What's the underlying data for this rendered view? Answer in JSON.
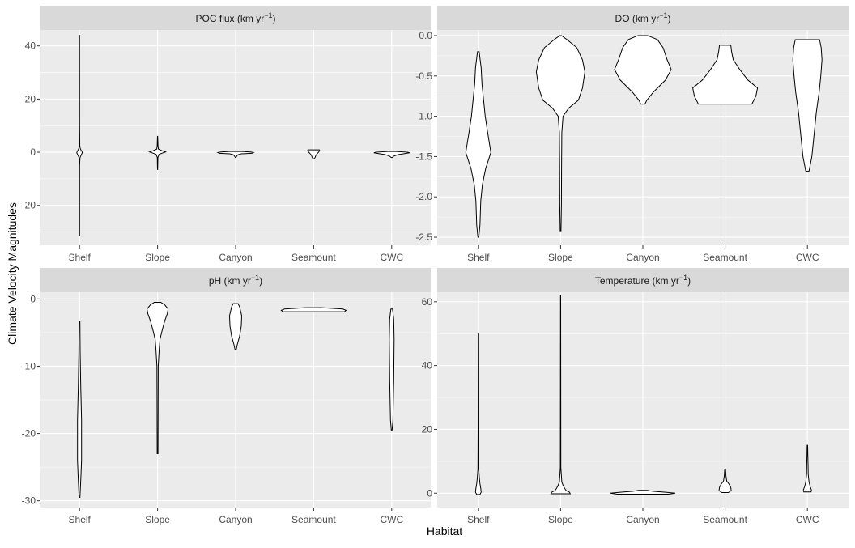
{
  "axes": {
    "xlabel": "Habitat",
    "ylabel": "Climate Velocity Magnitudes"
  },
  "chart_data": [
    {
      "type": "violin",
      "title": "POC flux (km yr",
      "title_sup": "−1",
      "title_suffix": ")",
      "categories": [
        "Shelf",
        "Slope",
        "Canyon",
        "Seamount",
        "CWC"
      ],
      "ylim": [
        -35,
        46
      ],
      "yticks": [
        -20,
        0,
        20,
        40
      ],
      "ytick_labels": [
        "-20",
        "0",
        "20",
        "40"
      ],
      "series": [
        {
          "category": "Shelf",
          "profile": [
            [
              -31.5,
              0.1
            ],
            [
              -5,
              0.1
            ],
            [
              -2,
              0.6
            ],
            [
              -0.8,
              2.4
            ],
            [
              -0.2,
              3.4
            ],
            [
              0.2,
              3.0
            ],
            [
              0.8,
              1.8
            ],
            [
              1.5,
              0.8
            ],
            [
              2.5,
              0.35
            ],
            [
              10,
              0.1
            ],
            [
              44,
              0.05
            ]
          ]
        },
        {
          "category": "Slope",
          "profile": [
            [
              -6.5,
              0.1
            ],
            [
              -2,
              0.4
            ],
            [
              -0.8,
              1.8
            ],
            [
              -0.3,
              6.0
            ],
            [
              0.1,
              10.0
            ],
            [
              0.5,
              6.0
            ],
            [
              1.2,
              1.0
            ],
            [
              2.5,
              0.5
            ],
            [
              6,
              0.1
            ]
          ]
        },
        {
          "category": "Canyon",
          "profile": [
            [
              -2,
              0.3
            ],
            [
              -1.4,
              1.5
            ],
            [
              -0.9,
              3.0
            ],
            [
              -0.6,
              7.0
            ],
            [
              -0.4,
              20.0
            ],
            [
              -0.1,
              22.0
            ],
            [
              0.1,
              18.0
            ],
            [
              0.3,
              8.0
            ]
          ]
        },
        {
          "category": "Seamount",
          "profile": [
            [
              -2.4,
              1.0
            ],
            [
              -1.8,
              2.0
            ],
            [
              -1,
              3.0
            ],
            [
              0,
              6.0
            ],
            [
              0.6,
              7.5
            ],
            [
              0.9,
              7.0
            ]
          ]
        },
        {
          "category": "CWC",
          "profile": [
            [
              -2,
              0.5
            ],
            [
              -1.4,
              3.0
            ],
            [
              -0.9,
              8.0
            ],
            [
              -0.5,
              16.0
            ],
            [
              -0.2,
              22.0
            ],
            [
              0,
              20.0
            ],
            [
              0.3,
              5.0
            ]
          ]
        }
      ]
    },
    {
      "type": "violin",
      "title": "DO (km yr",
      "title_sup": "−1",
      "title_suffix": ")",
      "categories": [
        "Shelf",
        "Slope",
        "Canyon",
        "Seamount",
        "CWC"
      ],
      "ylim": [
        -2.6,
        0.07
      ],
      "yticks": [
        -2.5,
        -2.0,
        -1.5,
        -1.0,
        -0.5,
        0.0
      ],
      "ytick_labels": [
        "-2.5",
        "-2.0",
        "-1.5",
        "-1.0",
        "-0.5",
        "0.0"
      ],
      "series": [
        {
          "category": "Shelf",
          "profile": [
            [
              -2.5,
              0.5
            ],
            [
              -2.35,
              2.0
            ],
            [
              -2.05,
              3.0
            ],
            [
              -1.85,
              5.0
            ],
            [
              -1.65,
              9.0
            ],
            [
              -1.45,
              15.5
            ],
            [
              -1.2,
              11.5
            ],
            [
              -1.0,
              8.5
            ],
            [
              -0.8,
              6.5
            ],
            [
              -0.6,
              4.5
            ],
            [
              -0.4,
              3.5
            ],
            [
              -0.2,
              1.0
            ]
          ]
        },
        {
          "category": "Slope",
          "profile": [
            [
              -2.42,
              0.5
            ],
            [
              -2.1,
              1.0
            ],
            [
              -1.6,
              1.2
            ],
            [
              -1.2,
              1.5
            ],
            [
              -1.0,
              3.0
            ],
            [
              -0.9,
              10.0
            ],
            [
              -0.8,
              22.0
            ],
            [
              -0.65,
              27.0
            ],
            [
              -0.45,
              30.0
            ],
            [
              -0.3,
              27.0
            ],
            [
              -0.15,
              20.0
            ],
            [
              -0.05,
              8.0
            ],
            [
              0.0,
              1.0
            ]
          ]
        },
        {
          "category": "Canyon",
          "profile": [
            [
              -0.85,
              2.5
            ],
            [
              -0.8,
              5.0
            ],
            [
              -0.7,
              13.0
            ],
            [
              -0.55,
              28.0
            ],
            [
              -0.42,
              35.0
            ],
            [
              -0.3,
              30.0
            ],
            [
              -0.15,
              25.0
            ],
            [
              -0.05,
              18.0
            ],
            [
              0.0,
              6.0
            ]
          ]
        },
        {
          "category": "Seamount",
          "profile": [
            [
              -0.85,
              33.0
            ],
            [
              -0.75,
              38.0
            ],
            [
              -0.65,
              40.0
            ],
            [
              -0.55,
              28.0
            ],
            [
              -0.42,
              18.0
            ],
            [
              -0.3,
              10.0
            ],
            [
              -0.2,
              8.0
            ],
            [
              -0.12,
              7.0
            ]
          ]
        },
        {
          "category": "CWC",
          "profile": [
            [
              -1.68,
              2.0
            ],
            [
              -1.5,
              5.5
            ],
            [
              -1.2,
              8.5
            ],
            [
              -0.95,
              11.0
            ],
            [
              -0.7,
              14.5
            ],
            [
              -0.5,
              16.5
            ],
            [
              -0.3,
              18.0
            ],
            [
              -0.15,
              17.0
            ],
            [
              -0.05,
              15.0
            ]
          ]
        }
      ]
    },
    {
      "type": "violin",
      "title": "pH (km yr",
      "title_sup": "−1",
      "title_suffix": ")",
      "categories": [
        "Shelf",
        "Slope",
        "Canyon",
        "Seamount",
        "CWC"
      ],
      "ylim": [
        -31,
        1
      ],
      "yticks": [
        -30,
        -20,
        -10,
        0
      ],
      "ytick_labels": [
        "-30",
        "-20",
        "-10",
        "0"
      ],
      "series": [
        {
          "category": "Shelf",
          "profile": [
            [
              -29.5,
              0.5
            ],
            [
              -27,
              1.5
            ],
            [
              -24,
              2.5
            ],
            [
              -18,
              2.5
            ],
            [
              -13,
              1.5
            ],
            [
              -8,
              0.8
            ],
            [
              -3.3,
              0.5
            ]
          ]
        },
        {
          "category": "Slope",
          "profile": [
            [
              -23,
              0.5
            ],
            [
              -10,
              0.8
            ],
            [
              -7.5,
              2.0
            ],
            [
              -6,
              3.0
            ],
            [
              -4.5,
              6.0
            ],
            [
              -3.2,
              9.0
            ],
            [
              -2.2,
              12.0
            ],
            [
              -1.5,
              13.0
            ],
            [
              -0.9,
              9.0
            ],
            [
              -0.5,
              4.0
            ]
          ]
        },
        {
          "category": "Canyon",
          "profile": [
            [
              -7.5,
              0.8
            ],
            [
              -6.8,
              2.0
            ],
            [
              -5.5,
              5.0
            ],
            [
              -4,
              7.0
            ],
            [
              -2.5,
              7.5
            ],
            [
              -1.2,
              5.0
            ],
            [
              -0.7,
              3.0
            ]
          ]
        },
        {
          "category": "Seamount",
          "profile": [
            [
              -1.9,
              38.0
            ],
            [
              -1.7,
              40.0
            ],
            [
              -1.5,
              36.0
            ],
            [
              -1.3,
              10.0
            ]
          ]
        },
        {
          "category": "CWC",
          "profile": [
            [
              -19.5,
              0.5
            ],
            [
              -18,
              1.5
            ],
            [
              -12,
              2.5
            ],
            [
              -6,
              3.0
            ],
            [
              -3,
              2.5
            ],
            [
              -1.5,
              1.0
            ]
          ]
        }
      ]
    },
    {
      "type": "violin",
      "title": "Temperature (km yr",
      "title_sup": "−1",
      "title_suffix": ")",
      "categories": [
        "Shelf",
        "Slope",
        "Canyon",
        "Seamount",
        "CWC"
      ],
      "ylim": [
        -4.5,
        63
      ],
      "yticks": [
        0,
        20,
        40,
        60
      ],
      "ytick_labels": [
        "0",
        "20",
        "40",
        "60"
      ],
      "series": [
        {
          "category": "Shelf",
          "profile": [
            [
              -0.4,
              2.0
            ],
            [
              0.3,
              3.5
            ],
            [
              1.5,
              3.0
            ],
            [
              3,
              2.0
            ],
            [
              5,
              1.2
            ],
            [
              7.5,
              0.5
            ],
            [
              20,
              0.3
            ],
            [
              50,
              0.1
            ]
          ]
        },
        {
          "category": "Slope",
          "profile": [
            [
              -0.2,
              12.0
            ],
            [
              0.3,
              11.0
            ],
            [
              0.8,
              7.0
            ],
            [
              1.5,
              5.0
            ],
            [
              2.5,
              3.0
            ],
            [
              3.5,
              1.5
            ],
            [
              8,
              0.3
            ],
            [
              62,
              0.1
            ]
          ]
        },
        {
          "category": "Canyon",
          "profile": [
            [
              -0.3,
              32.0
            ],
            [
              0,
              40.0
            ],
            [
              0.3,
              28.0
            ],
            [
              0.6,
              12.0
            ],
            [
              0.9,
              5.0
            ]
          ]
        },
        {
          "category": "Seamount",
          "profile": [
            [
              0.2,
              4.0
            ],
            [
              0.8,
              7.5
            ],
            [
              1.8,
              7.0
            ],
            [
              2.8,
              5.0
            ],
            [
              3.8,
              2.0
            ],
            [
              5.5,
              1.0
            ],
            [
              7.5,
              0.5
            ]
          ]
        },
        {
          "category": "CWC",
          "profile": [
            [
              0.4,
              4.5
            ],
            [
              1,
              5.0
            ],
            [
              2,
              3.5
            ],
            [
              3.5,
              2.0
            ],
            [
              6,
              1.0
            ],
            [
              9,
              0.8
            ],
            [
              12,
              0.5
            ],
            [
              15,
              0.3
            ]
          ]
        }
      ]
    }
  ]
}
